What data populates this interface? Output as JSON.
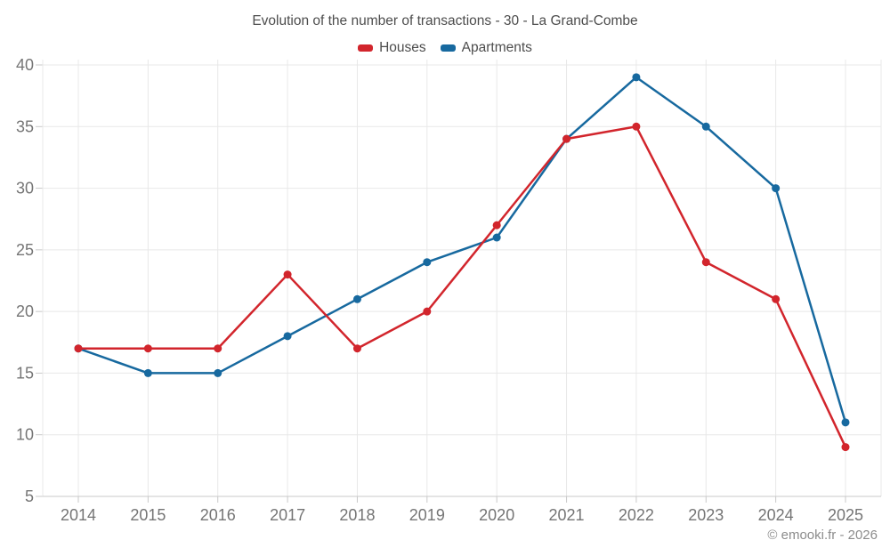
{
  "header": {
    "title": "Evolution of the number of transactions - 30 - La Grand-Combe"
  },
  "legend": {
    "items": [
      {
        "label": "Houses",
        "color": "#d2252c"
      },
      {
        "label": "Apartments",
        "color": "#17699f"
      }
    ]
  },
  "footer": {
    "credit": "© emooki.fr - 2026"
  },
  "colors": {
    "houses": "#d2252c",
    "apartments": "#17699f",
    "grid": "#e8e8e8",
    "axis_line": "#c9c9c9",
    "tick_label": "#757575",
    "title_text": "#4d4d4d",
    "credit_text": "#8c8c8c"
  },
  "chart_data": {
    "type": "line",
    "title": "Evolution of the number of transactions - 30 - La Grand-Combe",
    "categories": [
      "2014",
      "2015",
      "2016",
      "2017",
      "2018",
      "2019",
      "2020",
      "2021",
      "2022",
      "2023",
      "2024",
      "2025"
    ],
    "series": [
      {
        "name": "Houses",
        "color": "#d2252c",
        "values": [
          17,
          17,
          17,
          23,
          17,
          20,
          27,
          34,
          35,
          24,
          21,
          9
        ]
      },
      {
        "name": "Apartments",
        "color": "#17699f",
        "values": [
          17,
          15,
          15,
          18,
          21,
          24,
          26,
          34,
          39,
          35,
          30,
          11
        ]
      }
    ],
    "xlabel": "",
    "ylabel": "",
    "ylim": [
      5,
      40
    ],
    "yticks": [
      5,
      10,
      15,
      20,
      25,
      30,
      35,
      40
    ],
    "grid": true,
    "legend_position": "top",
    "credit": "© emooki.fr - 2026"
  }
}
